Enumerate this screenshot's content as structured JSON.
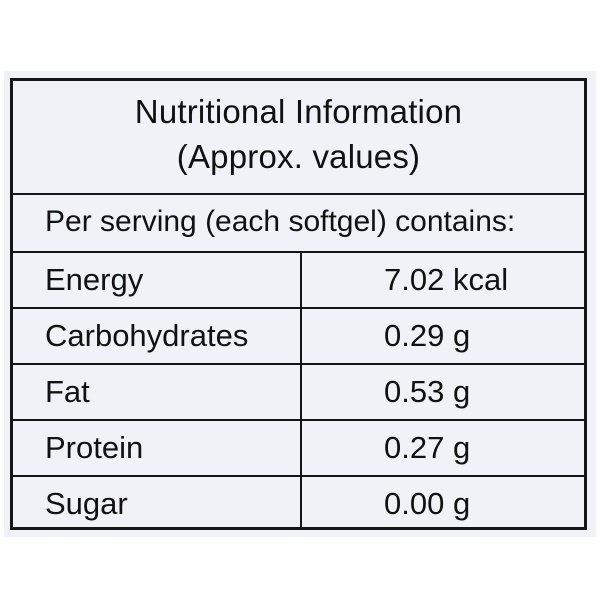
{
  "title": {
    "line1": "Nutritional Information",
    "line2": "(Approx. values)"
  },
  "serving": "Per serving (each softgel)  contains:",
  "rows": [
    {
      "name": "Energy",
      "value": "7.02 kcal"
    },
    {
      "name": "Carbohydrates",
      "value": "0.29 g"
    },
    {
      "name": "Fat",
      "value": "0.53 g"
    },
    {
      "name": "Protein",
      "value": "0.27 g"
    },
    {
      "name": "Sugar",
      "value": "0.00 g"
    }
  ],
  "colors": {
    "background": "#ffffff",
    "panel": "#f1f2f8",
    "border": "#151515",
    "text": "#111111"
  }
}
